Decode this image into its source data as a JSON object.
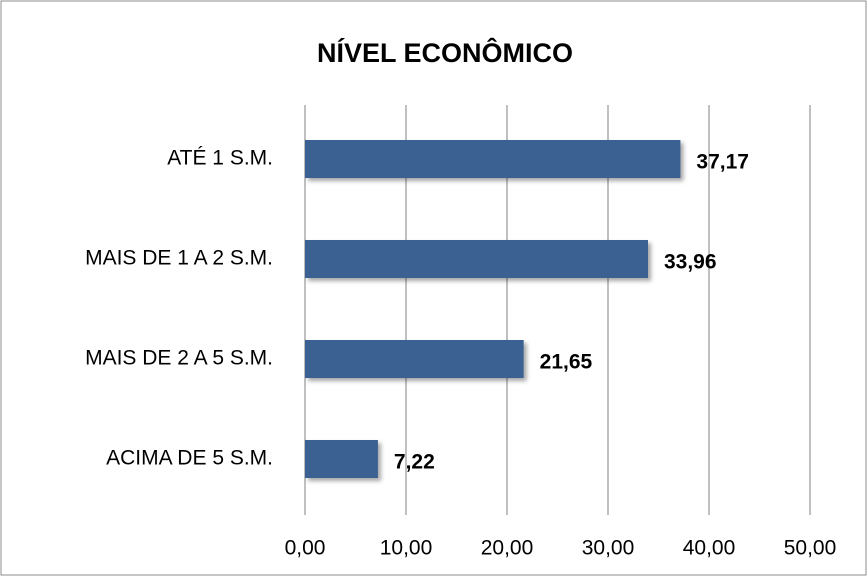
{
  "chart_data": {
    "type": "bar",
    "orientation": "horizontal",
    "title": "NÍVEL ECONÔMICO",
    "categories": [
      "ATÉ 1 S.M.",
      "MAIS DE 1 A 2 S.M.",
      "MAIS DE 2 A 5 S.M.",
      "ACIMA DE 5 S.M."
    ],
    "values": [
      37.17,
      33.96,
      21.65,
      7.22
    ],
    "value_labels": [
      "37,17",
      "33,96",
      "21,65",
      "7,22"
    ],
    "color": "#3a6192",
    "xlim": [
      0,
      50
    ],
    "xticks": [
      {
        "value": 0,
        "label": "0,00"
      },
      {
        "value": 10,
        "label": "10,00"
      },
      {
        "value": 20,
        "label": "20,00"
      },
      {
        "value": 30,
        "label": "30,00"
      },
      {
        "value": 40,
        "label": "40,00"
      },
      {
        "value": 50,
        "label": "50,00"
      }
    ],
    "grid": true
  }
}
